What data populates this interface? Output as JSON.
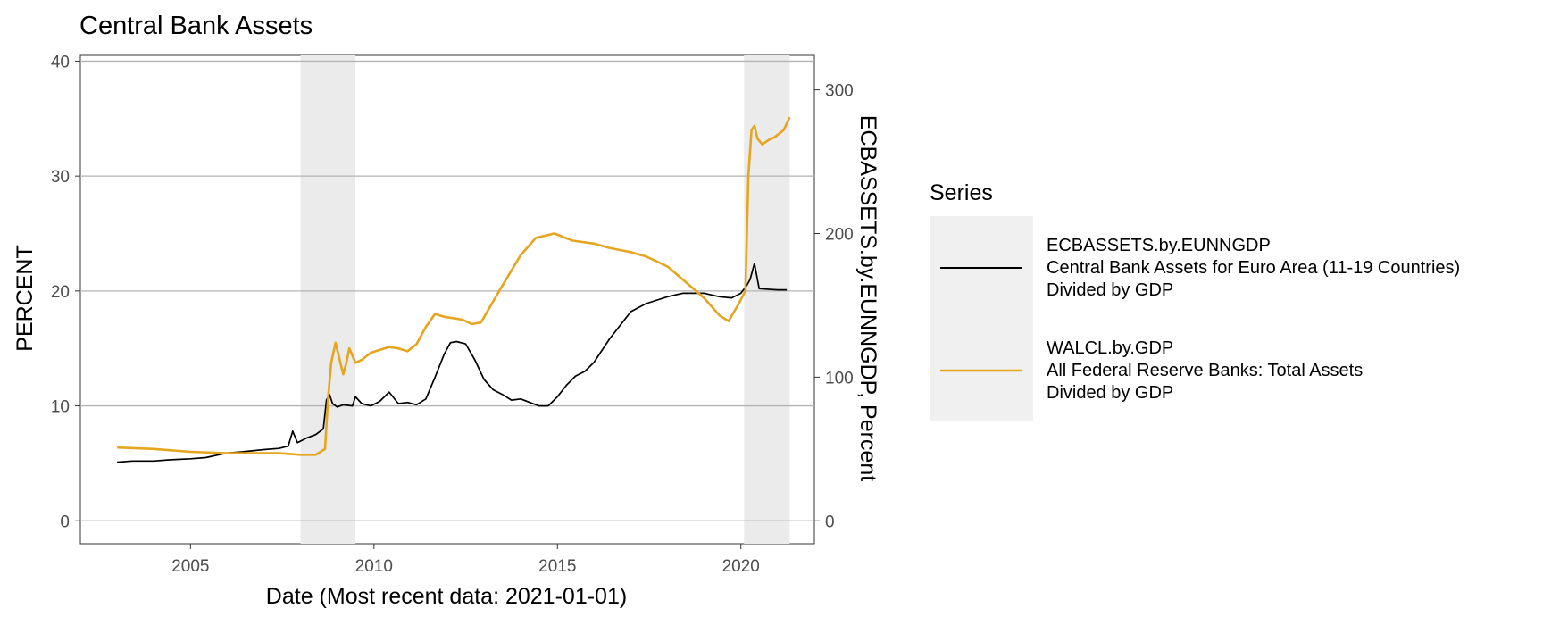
{
  "chart_data": {
    "type": "line",
    "title": "Central Bank Assets",
    "xlabel": "Date (Most recent data: 2021-01-01)",
    "ylabel": "PERCENT",
    "y2label": "ECBASSETS.by.EUNNGDP, Percent",
    "xlim": [
      "2002-01-01",
      "2022-01-01"
    ],
    "ylim": [
      -2,
      40.5
    ],
    "y2lim": [
      -16,
      324
    ],
    "x_ticks": [
      "2005",
      "2010",
      "2015",
      "2020"
    ],
    "y_ticks": [
      "0",
      "10",
      "20",
      "30",
      "40"
    ],
    "y2_ticks": [
      "0",
      "100",
      "200",
      "300"
    ],
    "grid": "horizontal major",
    "legend_position": "right",
    "legend_title": "Series",
    "recessions": [
      {
        "start": "2008-01-01",
        "end": "2009-06-30"
      },
      {
        "start": "2020-02-01",
        "end": "2021-04-30"
      }
    ],
    "series": [
      {
        "name": "ECBASSETS.by.EUNNGDP",
        "legend_lines": [
          "ECBASSETS.by.EUNNGDP",
          "Central Bank Assets for Euro Area (11-19 Countries)",
          "Divided by GDP"
        ],
        "axis": "left",
        "color": "#000000",
        "x": [
          "2003-01-01",
          "2003-06-01",
          "2004-01-01",
          "2004-06-01",
          "2005-01-01",
          "2005-06-01",
          "2006-01-01",
          "2006-06-01",
          "2007-01-01",
          "2007-06-01",
          "2007-09-01",
          "2007-10-15",
          "2007-12-01",
          "2008-03-01",
          "2008-06-01",
          "2008-08-15",
          "2008-09-15",
          "2008-10-15",
          "2008-11-15",
          "2009-01-01",
          "2009-03-01",
          "2009-06-01",
          "2009-07-01",
          "2009-09-01",
          "2009-12-01",
          "2010-03-01",
          "2010-06-01",
          "2010-09-01",
          "2010-12-01",
          "2011-03-01",
          "2011-06-01",
          "2011-09-01",
          "2011-12-01",
          "2012-02-01",
          "2012-04-01",
          "2012-07-01",
          "2012-10-01",
          "2013-01-01",
          "2013-04-01",
          "2013-07-01",
          "2013-10-01",
          "2014-01-01",
          "2014-04-01",
          "2014-07-01",
          "2014-10-01",
          "2015-01-01",
          "2015-04-01",
          "2015-07-01",
          "2015-10-01",
          "2016-01-01",
          "2016-06-01",
          "2017-01-01",
          "2017-06-01",
          "2018-01-01",
          "2018-06-01",
          "2019-01-01",
          "2019-06-01",
          "2019-10-01",
          "2020-01-01",
          "2020-03-01",
          "2020-04-01",
          "2020-05-15",
          "2020-07-01",
          "2021-01-01",
          "2021-04-01"
        ],
        "values": [
          5.1,
          5.2,
          5.2,
          5.3,
          5.4,
          5.5,
          5.9,
          6.0,
          6.2,
          6.3,
          6.5,
          7.8,
          6.8,
          7.2,
          7.5,
          8.0,
          10.5,
          11.0,
          10.2,
          9.9,
          10.1,
          10.0,
          10.8,
          10.2,
          10.0,
          10.4,
          11.2,
          10.2,
          10.3,
          10.1,
          10.6,
          12.5,
          14.5,
          15.5,
          15.6,
          15.4,
          14.0,
          12.3,
          11.4,
          11.0,
          10.5,
          10.6,
          10.3,
          10.0,
          10.0,
          10.8,
          11.8,
          12.6,
          13.0,
          13.8,
          15.8,
          18.2,
          18.9,
          19.5,
          19.8,
          19.8,
          19.5,
          19.4,
          19.8,
          20.5,
          21.0,
          22.4,
          20.2,
          20.1,
          20.1
        ]
      },
      {
        "name": "WALCL.by.GDP",
        "legend_lines": [
          "WALCL.by.GDP",
          "All Federal Reserve Banks: Total Assets",
          "Divided by GDP"
        ],
        "axis": "right",
        "color": "#e6a51e",
        "x": [
          "2003-01-01",
          "2004-01-01",
          "2005-01-01",
          "2006-01-01",
          "2007-01-01",
          "2007-06-01",
          "2008-01-01",
          "2008-06-01",
          "2008-09-01",
          "2008-10-01",
          "2008-11-01",
          "2008-12-15",
          "2009-01-15",
          "2009-03-01",
          "2009-04-01",
          "2009-05-01",
          "2009-06-01",
          "2009-07-01",
          "2009-09-01",
          "2009-12-01",
          "2010-06-01",
          "2010-09-01",
          "2010-12-01",
          "2011-03-01",
          "2011-06-01",
          "2011-09-01",
          "2011-12-01",
          "2012-03-01",
          "2012-06-01",
          "2012-09-01",
          "2012-12-01",
          "2013-06-01",
          "2014-01-01",
          "2014-06-01",
          "2014-12-01",
          "2015-06-01",
          "2016-01-01",
          "2016-06-01",
          "2017-01-01",
          "2017-06-01",
          "2018-01-01",
          "2018-06-01",
          "2019-01-01",
          "2019-06-01",
          "2019-09-01",
          "2019-12-01",
          "2020-02-15",
          "2020-03-15",
          "2020-04-15",
          "2020-05-15",
          "2020-06-15",
          "2020-08-01",
          "2020-10-01",
          "2020-12-01",
          "2021-03-01",
          "2021-05-01"
        ],
        "values": [
          51,
          50,
          48,
          47,
          47,
          47,
          46,
          46,
          50,
          85,
          110,
          124,
          115,
          102,
          110,
          120,
          115,
          110,
          112,
          117,
          121,
          120,
          118,
          123,
          135,
          144,
          142,
          141,
          140,
          137,
          138,
          160,
          185,
          197,
          200,
          195,
          193,
          190,
          187,
          184,
          177,
          168,
          155,
          143,
          139,
          150,
          160,
          240,
          272,
          275,
          266,
          262,
          265,
          267,
          272,
          281
        ]
      }
    ]
  }
}
